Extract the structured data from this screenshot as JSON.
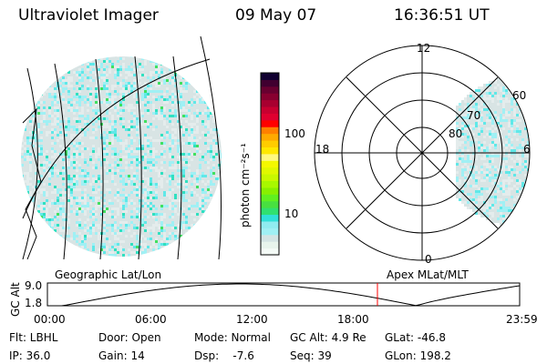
{
  "header": {
    "instrument": "Ultraviolet Imager",
    "date": "09 May 07",
    "time": "16:36:51 UT"
  },
  "colorbar": {
    "label": "photon cm⁻²s⁻¹",
    "ticks": [
      "100",
      "10"
    ],
    "colors": [
      "#f4faf6",
      "#e8f4ec",
      "#d4e4e4",
      "#a0f0f4",
      "#90ecf0",
      "#30e0d8",
      "#30e070",
      "#48e040",
      "#60f020",
      "#88f000",
      "#a8f800",
      "#c8f800",
      "#e0f800",
      "#f4f800",
      "#fff880",
      "#ffe800",
      "#ffcc00",
      "#ffaa00",
      "#ff8000",
      "#ff0000",
      "#e00030",
      "#c80030",
      "#a80030",
      "#880030",
      "#680030",
      "#400030",
      "#100030"
    ]
  },
  "polar": {
    "labels": {
      "top": "12",
      "left": "18",
      "right": "6",
      "bottom": "0"
    },
    "rings": [
      "60",
      "70",
      "80"
    ]
  },
  "timeline": {
    "left_label": "Geographic Lat/Lon",
    "right_label": "Apex MLat/MLT",
    "y_axis_label": "GC Alt",
    "y_ticks": [
      "9.0",
      "1.8"
    ],
    "x_ticks": [
      "00:00",
      "06:00",
      "12:00",
      "18:00",
      "23:59"
    ],
    "current_marker_color": "#ff0000"
  },
  "status": {
    "flt": "Flt: LBHL",
    "ip": "IP: 36.0",
    "door": "Door: Open",
    "gain": "Gain: 14",
    "mode": "Mode: Normal",
    "dsp": "Dsp:    -7.6",
    "gcalt": "GC Alt: 4.9 Re",
    "seq": "Seq: 39",
    "glat": "GLat: -46.8",
    "glon": "GLon: 198.2"
  }
}
